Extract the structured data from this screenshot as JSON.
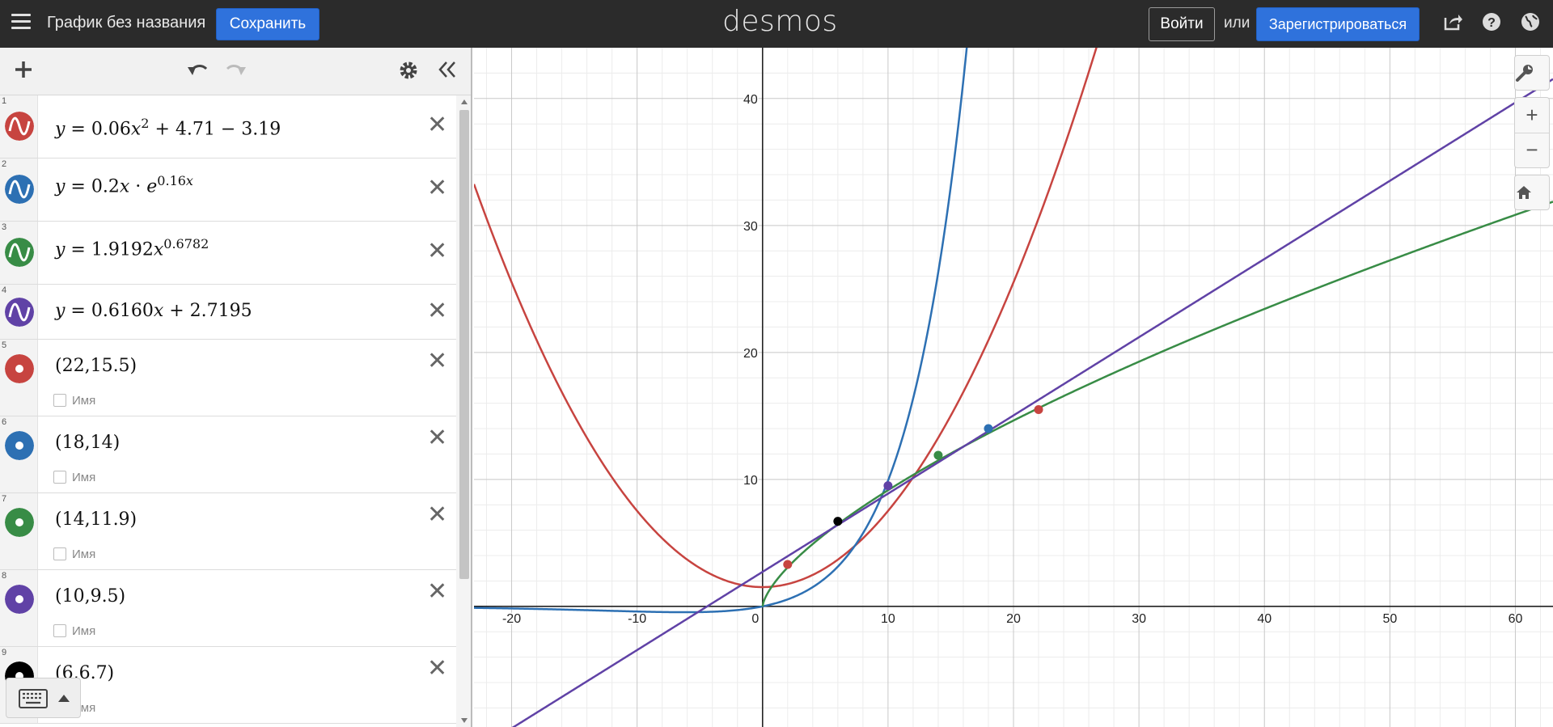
{
  "topbar": {
    "graph_title": "График без названия",
    "save_label": "Сохранить",
    "logo": "desmos",
    "login_label": "Войти",
    "or_text": "или",
    "signup_label": "Зарегистрироваться",
    "icons": [
      "menu-icon",
      "share-icon",
      "help-icon",
      "globe-icon"
    ]
  },
  "toolbar": {
    "icons": [
      "add-icon",
      "undo-icon",
      "redo-icon",
      "settings-icon",
      "collapse-icon"
    ]
  },
  "expressions": [
    {
      "index": "1",
      "color": "#c74440",
      "kind": "curve",
      "latex_parts": [
        "y",
        " = 0.06",
        "x",
        "2",
        " + 4.71 − 3.19"
      ]
    },
    {
      "index": "2",
      "color": "#2d70b3",
      "kind": "curve",
      "latex_parts": [
        "y",
        " = 0.2",
        "x",
        " · ",
        "e",
        "0.16",
        "x"
      ]
    },
    {
      "index": "3",
      "color": "#388c46",
      "kind": "curve",
      "latex_parts": [
        "y",
        " = 1.9192",
        "x",
        "0.6782"
      ]
    },
    {
      "index": "4",
      "color": "#6042a6",
      "kind": "curve",
      "latex_parts": [
        "y",
        " = 0.6160",
        "x",
        " + 2.7195"
      ]
    },
    {
      "index": "5",
      "color": "#c74440",
      "kind": "point",
      "text": "(22,15.5)",
      "name_label": "Имя"
    },
    {
      "index": "6",
      "color": "#2d70b3",
      "kind": "point",
      "text": "(18,14)",
      "name_label": "Имя"
    },
    {
      "index": "7",
      "color": "#388c46",
      "kind": "point",
      "text": "(14,11.9)",
      "name_label": "Имя"
    },
    {
      "index": "8",
      "color": "#6042a6",
      "kind": "point",
      "text": "(10,9.5)",
      "name_label": "Имя"
    },
    {
      "index": "9",
      "color": "#000000",
      "kind": "point",
      "text": "(6,6.7)",
      "name_label": "Имя"
    }
  ],
  "graph": {
    "x_range": [
      -23,
      63
    ],
    "y_range": [
      -9.5,
      44
    ],
    "x_ticks": [
      "-20",
      "-10",
      "0",
      "10",
      "20",
      "30",
      "40",
      "50",
      "60"
    ],
    "y_ticks": [
      "10",
      "20",
      "30",
      "40"
    ],
    "grid": true,
    "points": [
      {
        "x": 22,
        "y": 15.5,
        "color": "#c74440"
      },
      {
        "x": 18,
        "y": 14,
        "color": "#2d70b3"
      },
      {
        "x": 14,
        "y": 11.9,
        "color": "#388c46"
      },
      {
        "x": 10,
        "y": 9.5,
        "color": "#6042a6"
      },
      {
        "x": 6,
        "y": 6.7,
        "color": "#000000"
      },
      {
        "x": 2,
        "y": 3.3,
        "color": "#c74440"
      }
    ]
  },
  "colors": {
    "red": "#c74440",
    "blue": "#2d70b3",
    "green": "#388c46",
    "purple": "#6042a6",
    "black": "#000000",
    "accent": "#2f72dc"
  }
}
